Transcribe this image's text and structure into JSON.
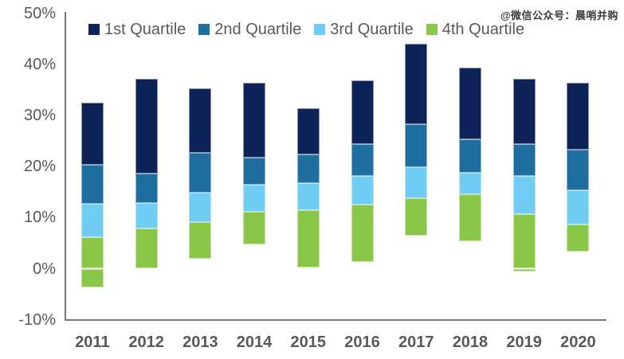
{
  "watermark": {
    "text": "@微信公众号：晨哨并购"
  },
  "colors": {
    "axis_text": "#595959",
    "axis_line": "#7a7a7a",
    "background": "#ffffff",
    "quartile1": "#0e2458",
    "quartile2": "#1e6fa0",
    "quartile3": "#6fcdf4",
    "quartile4": "#8ac648"
  },
  "chart_data": {
    "type": "bar",
    "subtype": "floating_stacked_column_range",
    "title": "",
    "legend_position": "top",
    "grid": false,
    "categories": [
      "2011",
      "2012",
      "2013",
      "2014",
      "2015",
      "2016",
      "2017",
      "2018",
      "2019",
      "2020"
    ],
    "legend": [
      {
        "label": "1st Quartile",
        "color": "#0e2458"
      },
      {
        "label": "2nd Quartile",
        "color": "#1e6fa0"
      },
      {
        "label": "3rd Quartile",
        "color": "#6fcdf4"
      },
      {
        "label": "4th Quartile",
        "color": "#8ac648"
      }
    ],
    "y_axis": {
      "min": -10,
      "max": 50,
      "step": 10,
      "format": "percent",
      "tick_labels": [
        "50%",
        "40%",
        "30%",
        "20%",
        "10%",
        "0%",
        "-10%"
      ]
    },
    "boundaries_meaning": [
      "top of 1st-quartile segment (%)",
      "1st/2nd quartile boundary (%)",
      "2nd/3rd quartile boundary (%)",
      "3rd/4th quartile boundary (%)",
      "bottom of 4th-quartile segment (%)"
    ],
    "bars": [
      {
        "year": "2011",
        "boundaries": [
          32.4,
          20.3,
          12.7,
          6.2,
          -3.7
        ]
      },
      {
        "year": "2012",
        "boundaries": [
          37.2,
          18.6,
          12.9,
          7.8,
          0.0
        ]
      },
      {
        "year": "2013",
        "boundaries": [
          35.3,
          22.6,
          14.9,
          9.1,
          2.0
        ]
      },
      {
        "year": "2014",
        "boundaries": [
          36.4,
          21.7,
          16.4,
          11.1,
          4.8
        ]
      },
      {
        "year": "2015",
        "boundaries": [
          31.4,
          22.3,
          16.7,
          11.4,
          0.2
        ]
      },
      {
        "year": "2016",
        "boundaries": [
          36.9,
          24.4,
          18.2,
          12.6,
          1.3
        ]
      },
      {
        "year": "2017",
        "boundaries": [
          44.0,
          28.2,
          19.8,
          13.8,
          6.4
        ]
      },
      {
        "year": "2018",
        "boundaries": [
          39.3,
          25.3,
          18.7,
          14.5,
          5.4
        ]
      },
      {
        "year": "2019",
        "boundaries": [
          37.2,
          24.3,
          18.2,
          10.7,
          -0.5
        ]
      },
      {
        "year": "2020",
        "boundaries": [
          36.4,
          23.3,
          15.3,
          8.7,
          3.4
        ]
      }
    ]
  }
}
